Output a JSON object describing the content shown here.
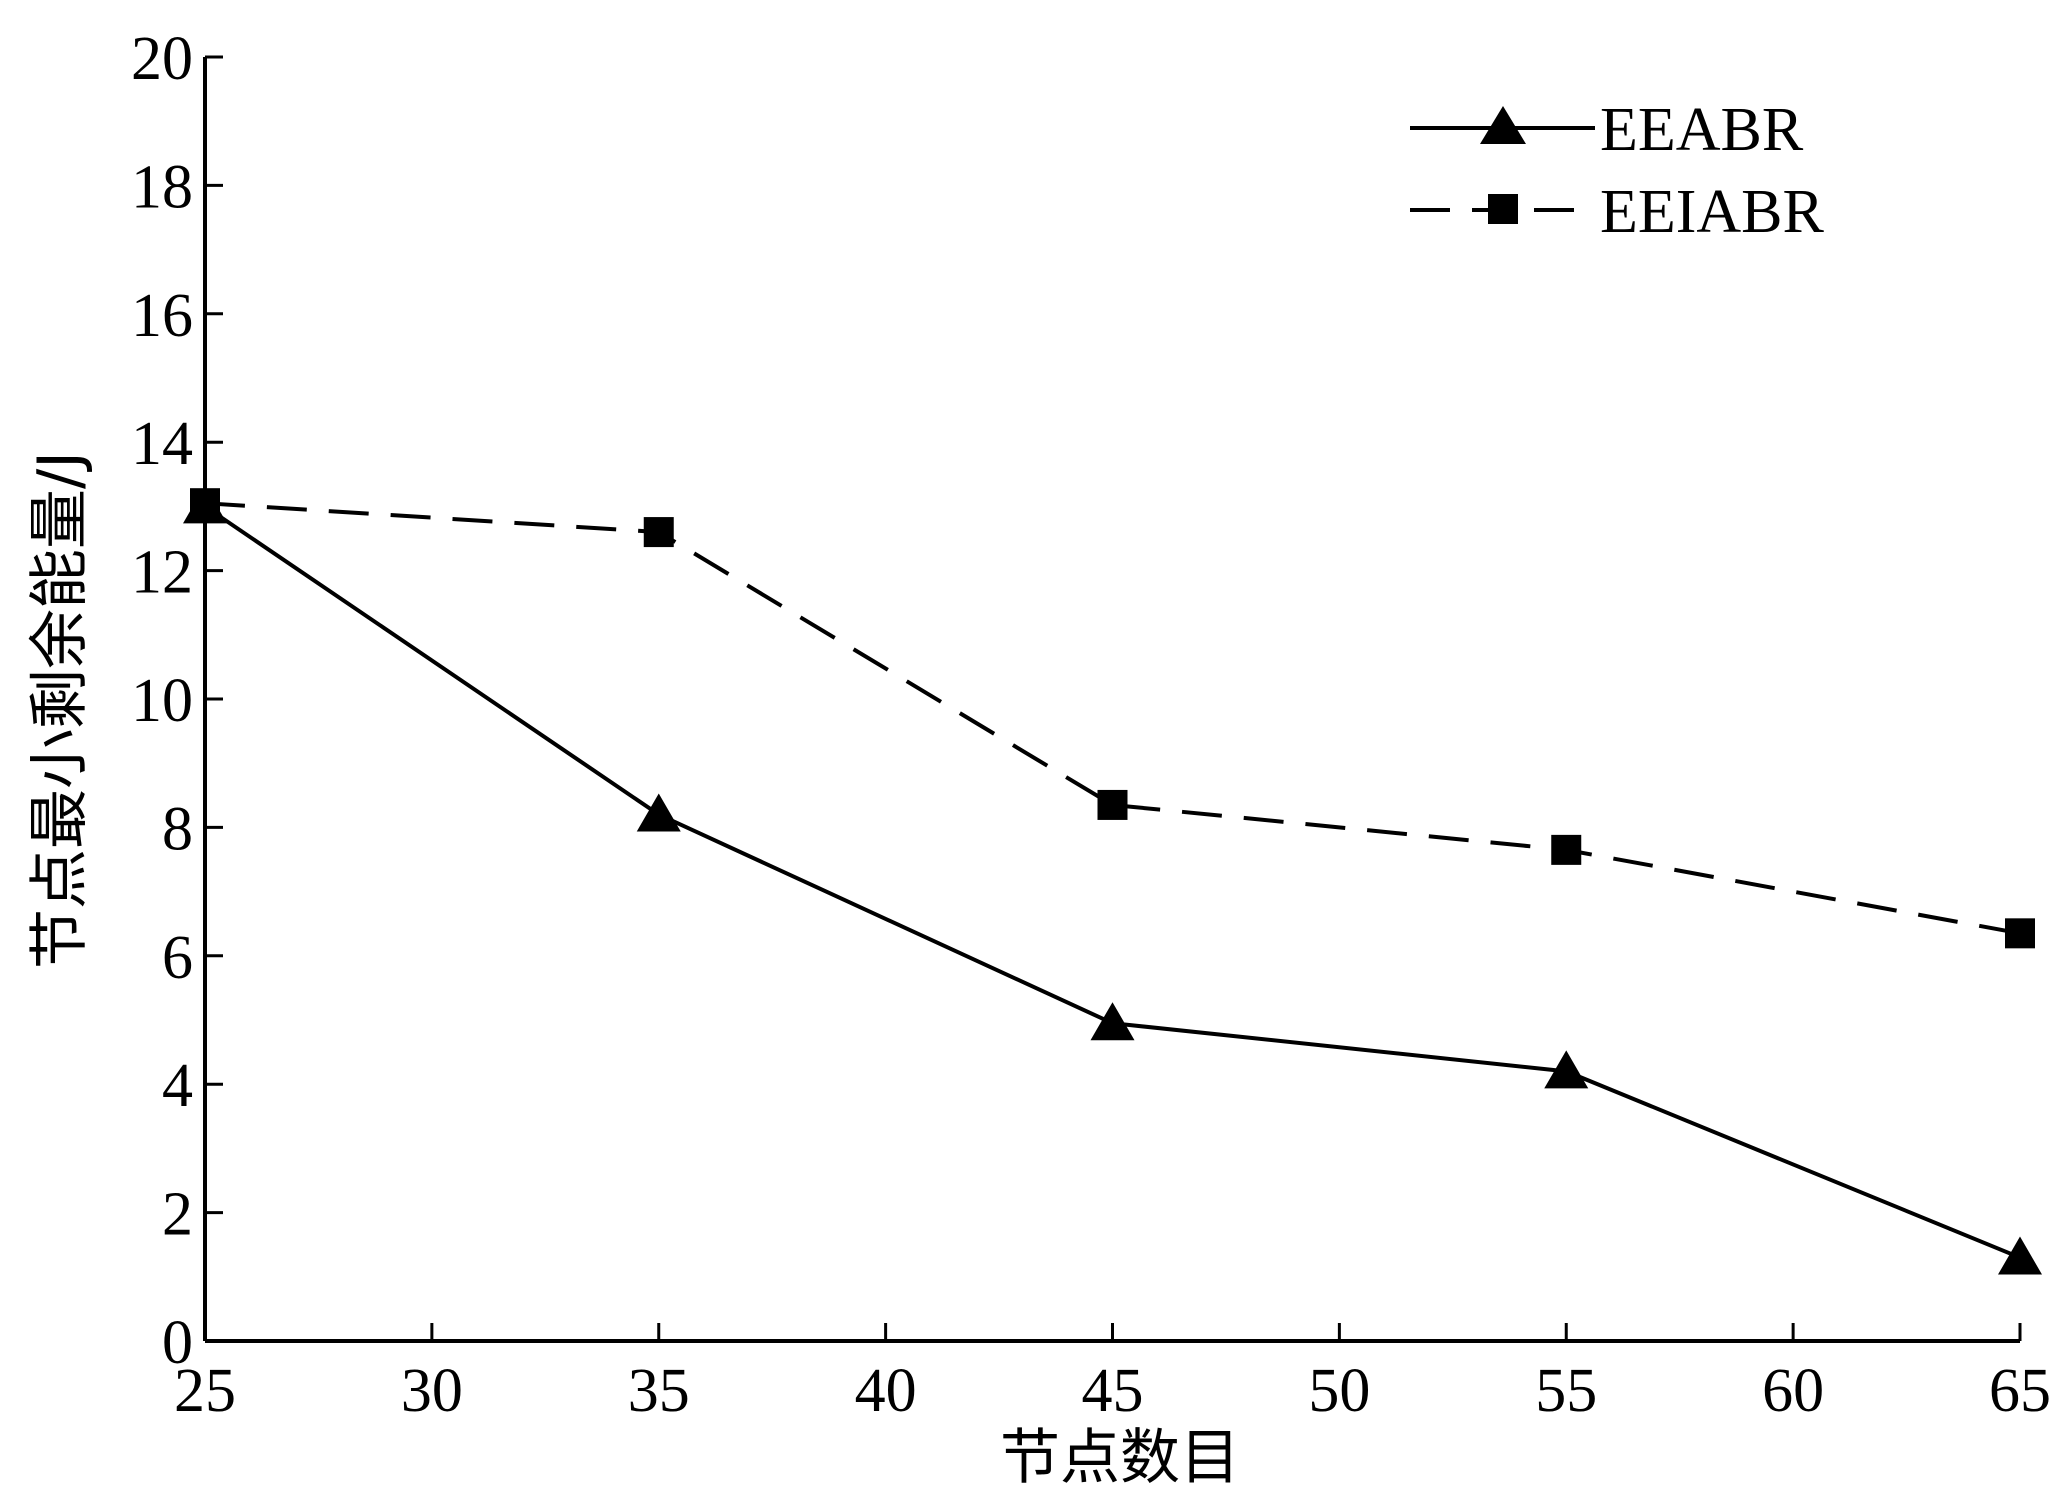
{
  "chart_data": {
    "type": "line",
    "title": "",
    "xlabel": "节点数目",
    "ylabel": "节点最小剩余能量/J",
    "x": [
      25,
      35,
      45,
      55,
      65
    ],
    "xlim": [
      25,
      65
    ],
    "ylim": [
      0,
      20
    ],
    "xticks": [
      25,
      30,
      35,
      40,
      45,
      50,
      55,
      60,
      65
    ],
    "yticks": [
      0,
      2,
      4,
      6,
      8,
      10,
      12,
      14,
      16,
      18,
      20
    ],
    "xtick_labels": [
      "25",
      "30",
      "35",
      "40",
      "45",
      "50",
      "55",
      "60",
      "65"
    ],
    "ytick_labels": [
      "0",
      "2",
      "4",
      "6",
      "8",
      "10",
      "12",
      "14",
      "16",
      "18",
      "20"
    ],
    "grid": false,
    "legend_position": "top-right",
    "series": [
      {
        "name": "EEABR",
        "values": [
          13.0,
          8.2,
          4.95,
          4.2,
          1.3
        ],
        "line_style": "solid",
        "marker": "triangle",
        "color": "#000000"
      },
      {
        "name": "EEIABR",
        "values": [
          13.05,
          12.6,
          8.35,
          7.65,
          6.35
        ],
        "line_style": "dashed",
        "marker": "square",
        "color": "#000000"
      }
    ]
  }
}
